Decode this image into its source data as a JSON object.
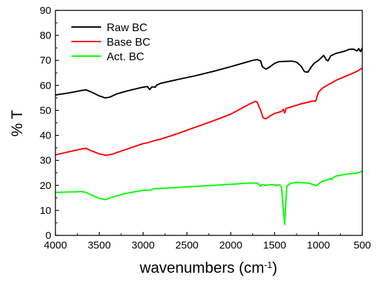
{
  "chart_data": {
    "type": "line",
    "xlabel": "wavenumbers (cm",
    "xlabel_sup": "-1",
    "xlabel_close": ")",
    "ylabel": "% T",
    "xlim": [
      4000,
      500
    ],
    "ylim": [
      0,
      90
    ],
    "x_ticks": [
      4000,
      3500,
      3000,
      2500,
      2000,
      1500,
      1000,
      500
    ],
    "y_ticks": [
      0,
      10,
      20,
      30,
      40,
      50,
      60,
      70,
      80,
      90
    ],
    "grid": false,
    "legend_position": "top-left",
    "series": [
      {
        "name": "Raw BC",
        "color": "#000000",
        "points": [
          [
            4000,
            56.2
          ],
          [
            3900,
            56.7
          ],
          [
            3800,
            57.3
          ],
          [
            3700,
            58
          ],
          [
            3650,
            58.2
          ],
          [
            3600,
            57.5
          ],
          [
            3500,
            55.8
          ],
          [
            3430,
            55
          ],
          [
            3380,
            55.3
          ],
          [
            3300,
            56.6
          ],
          [
            3200,
            57.6
          ],
          [
            3100,
            58.5
          ],
          [
            3000,
            59.3
          ],
          [
            2950,
            59.5
          ],
          [
            2925,
            58.3
          ],
          [
            2900,
            59.4
          ],
          [
            2860,
            59.3
          ],
          [
            2850,
            60
          ],
          [
            2800,
            60.8
          ],
          [
            2600,
            62.4
          ],
          [
            2400,
            63.9
          ],
          [
            2200,
            65.6
          ],
          [
            2000,
            67.5
          ],
          [
            1800,
            69.5
          ],
          [
            1750,
            70
          ],
          [
            1700,
            70.3
          ],
          [
            1660,
            69.8
          ],
          [
            1640,
            67.5
          ],
          [
            1600,
            66.5
          ],
          [
            1560,
            67.3
          ],
          [
            1500,
            68.8
          ],
          [
            1450,
            69.5
          ],
          [
            1400,
            69.6
          ],
          [
            1300,
            69.7
          ],
          [
            1250,
            69.3
          ],
          [
            1200,
            67.8
          ],
          [
            1160,
            65.5
          ],
          [
            1120,
            65.3
          ],
          [
            1080,
            67.5
          ],
          [
            1050,
            68.8
          ],
          [
            1000,
            70
          ],
          [
            960,
            71.3
          ],
          [
            940,
            72
          ],
          [
            910,
            70.2
          ],
          [
            890,
            69.8
          ],
          [
            860,
            71.8
          ],
          [
            800,
            72.8
          ],
          [
            700,
            73.7
          ],
          [
            650,
            74.4
          ],
          [
            600,
            74.5
          ],
          [
            560,
            73.8
          ],
          [
            540,
            74.7
          ],
          [
            520,
            73.5
          ],
          [
            500,
            75
          ]
        ]
      },
      {
        "name": "Base BC",
        "color": "#ff0000",
        "points": [
          [
            4000,
            32.2
          ],
          [
            3900,
            33
          ],
          [
            3800,
            33.8
          ],
          [
            3700,
            34.6
          ],
          [
            3650,
            34.8
          ],
          [
            3600,
            34
          ],
          [
            3500,
            32.6
          ],
          [
            3420,
            32
          ],
          [
            3350,
            32.5
          ],
          [
            3200,
            34.3
          ],
          [
            3000,
            36.7
          ],
          [
            2930,
            37.2
          ],
          [
            2900,
            37.6
          ],
          [
            2800,
            38.5
          ],
          [
            2600,
            40.8
          ],
          [
            2400,
            43.3
          ],
          [
            2200,
            45.8
          ],
          [
            2000,
            48.5
          ],
          [
            1800,
            52.3
          ],
          [
            1720,
            53.6
          ],
          [
            1700,
            53.4
          ],
          [
            1660,
            50
          ],
          [
            1630,
            47
          ],
          [
            1600,
            46.6
          ],
          [
            1550,
            47.8
          ],
          [
            1500,
            48.8
          ],
          [
            1450,
            49.3
          ],
          [
            1420,
            49.6
          ],
          [
            1400,
            50.5
          ],
          [
            1385,
            48.9
          ],
          [
            1370,
            50.8
          ],
          [
            1300,
            51.5
          ],
          [
            1200,
            52.6
          ],
          [
            1150,
            53
          ],
          [
            1080,
            53.6
          ],
          [
            1030,
            53.8
          ],
          [
            1000,
            57.3
          ],
          [
            950,
            59
          ],
          [
            900,
            60
          ],
          [
            850,
            61
          ],
          [
            800,
            62
          ],
          [
            700,
            63.5
          ],
          [
            600,
            65
          ],
          [
            550,
            65.8
          ],
          [
            500,
            67
          ]
        ]
      },
      {
        "name": "Act. BC",
        "color": "#00ff00",
        "points": [
          [
            4000,
            17.2
          ],
          [
            3800,
            17.4
          ],
          [
            3700,
            17.5
          ],
          [
            3650,
            17.2
          ],
          [
            3600,
            16.3
          ],
          [
            3500,
            14.8
          ],
          [
            3430,
            14.3
          ],
          [
            3350,
            15.3
          ],
          [
            3200,
            16.8
          ],
          [
            3000,
            18
          ],
          [
            2920,
            18
          ],
          [
            2880,
            18.6
          ],
          [
            2800,
            18.8
          ],
          [
            2600,
            19.2
          ],
          [
            2500,
            19.4
          ],
          [
            2400,
            19.6
          ],
          [
            2200,
            20
          ],
          [
            2000,
            20.4
          ],
          [
            1800,
            20.9
          ],
          [
            1700,
            21
          ],
          [
            1660,
            19.7
          ],
          [
            1640,
            20.3
          ],
          [
            1600,
            20
          ],
          [
            1560,
            20.3
          ],
          [
            1500,
            20.2
          ],
          [
            1470,
            19.9
          ],
          [
            1440,
            20.3
          ],
          [
            1420,
            19
          ],
          [
            1400,
            10
          ],
          [
            1385,
            4.4
          ],
          [
            1375,
            12
          ],
          [
            1360,
            19.8
          ],
          [
            1320,
            20.8
          ],
          [
            1250,
            21.2
          ],
          [
            1150,
            21
          ],
          [
            1100,
            20.8
          ],
          [
            1050,
            20.2
          ],
          [
            1030,
            19.9
          ],
          [
            1000,
            20.5
          ],
          [
            960,
            21.6
          ],
          [
            900,
            22.2
          ],
          [
            860,
            22.8
          ],
          [
            850,
            22.3
          ],
          [
            830,
            23.2
          ],
          [
            800,
            23.7
          ],
          [
            700,
            24.4
          ],
          [
            600,
            24.8
          ],
          [
            550,
            25
          ],
          [
            500,
            25.7
          ]
        ]
      }
    ]
  }
}
